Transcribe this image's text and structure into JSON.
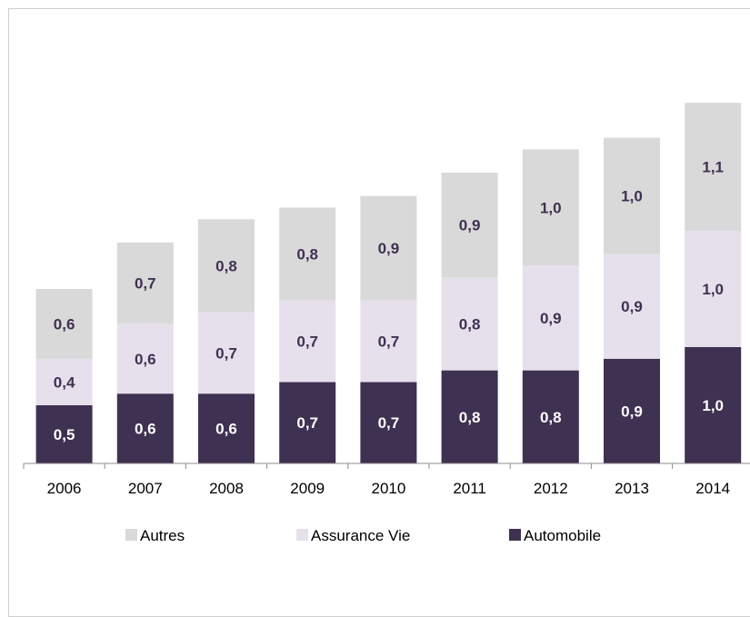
{
  "chart_data": {
    "type": "bar",
    "stacked": true,
    "categories": [
      "2006",
      "2007",
      "2008",
      "2009",
      "2010",
      "2011",
      "2012",
      "2013",
      "2014"
    ],
    "series": [
      {
        "name": "Automobile",
        "color": "#3f3151",
        "label_color": "#ffffff",
        "values": [
          0.5,
          0.6,
          0.6,
          0.7,
          0.7,
          0.8,
          0.8,
          0.9,
          1.0
        ],
        "labels": [
          "0,5",
          "0,6",
          "0,6",
          "0,7",
          "0,7",
          "0,8",
          "0,8",
          "0,9",
          "1,0"
        ]
      },
      {
        "name": "Assurance Vie",
        "color": "#e6e0ec",
        "label_color": "#3f3151",
        "values": [
          0.4,
          0.6,
          0.7,
          0.7,
          0.7,
          0.8,
          0.9,
          0.9,
          1.0
        ],
        "labels": [
          "0,4",
          "0,6",
          "0,7",
          "0,7",
          "0,7",
          "0,8",
          "0,9",
          "0,9",
          "1,0"
        ]
      },
      {
        "name": "Autres",
        "color": "#d9d9d9",
        "label_color": "#3f3151",
        "values": [
          0.6,
          0.7,
          0.8,
          0.8,
          0.9,
          0.9,
          1.0,
          1.0,
          1.1
        ],
        "labels": [
          "0,6",
          "0,7",
          "0,8",
          "0,8",
          "0,9",
          "0,9",
          "1,0",
          "1,0",
          "1,1"
        ]
      }
    ],
    "legend_order": [
      "Autres",
      "Assurance Vie",
      "Automobile"
    ],
    "legend_position": "bottom",
    "grid": false
  }
}
